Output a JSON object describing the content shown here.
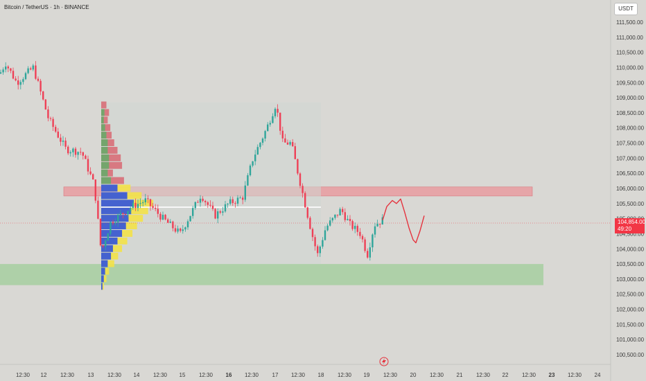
{
  "header": {
    "title": "Bitcoin / TetherUS · 1h · BINANCE",
    "currency_button": "USDT"
  },
  "last_price": {
    "value": "104,854.00",
    "countdown": "49:20",
    "color": "#f23645"
  },
  "colors": {
    "background": "#d9d8d4",
    "up_candle": "#2fa59a",
    "down_candle": "#ee4056",
    "red_zone": "#e79ca0",
    "green_zone": "#a9cfa3",
    "range_box": "#cfd7d2",
    "profile_up": "#3b5bd6",
    "profile_down": "#f3e248",
    "projection": "#e5323d"
  },
  "watermark_icon": "lightning-bolt-icon",
  "chart_data": {
    "type": "candlestick",
    "symbol": "BTCUSDT",
    "interval": "1h",
    "ylim": [
      100000,
      112000
    ],
    "y_ticks": [
      "111,500.00",
      "111,000.00",
      "110,500.00",
      "110,000.00",
      "109,500.00",
      "109,000.00",
      "108,500.00",
      "108,000.00",
      "107,500.00",
      "107,000.00",
      "106,500.00",
      "106,000.00",
      "105,500.00",
      "105,000.00",
      "104,500.00",
      "104,000.00",
      "103,500.00",
      "103,000.00",
      "102,500.00",
      "102,000.00",
      "101,500.00",
      "101,000.00",
      "100,500.00"
    ],
    "x_ticks": [
      "12:30",
      "12",
      "12:30",
      "13",
      "12:30",
      "14",
      "12:30",
      "15",
      "12:30",
      "16",
      "12:30",
      "17",
      "12:30",
      "18",
      "12:30",
      "19",
      "12:30",
      "20",
      "12:30",
      "21",
      "12:30",
      "22",
      "12:30",
      "23",
      "12:30",
      "24"
    ],
    "x_ticks_bold": [
      "16",
      "23"
    ],
    "path_keypoints": [
      {
        "t": 0,
        "p": 109800
      },
      {
        "t": 8,
        "p": 110150
      },
      {
        "t": 24,
        "p": 109500
      },
      {
        "t": 48,
        "p": 110000
      },
      {
        "t": 70,
        "p": 108300
      },
      {
        "t": 95,
        "p": 107300
      },
      {
        "t": 118,
        "p": 107200
      },
      {
        "t": 136,
        "p": 106100
      },
      {
        "t": 146,
        "p": 103900
      },
      {
        "t": 160,
        "p": 104900
      },
      {
        "t": 190,
        "p": 105400
      },
      {
        "t": 210,
        "p": 105600
      },
      {
        "t": 235,
        "p": 105000
      },
      {
        "t": 260,
        "p": 104500
      },
      {
        "t": 290,
        "p": 105800
      },
      {
        "t": 310,
        "p": 105100
      },
      {
        "t": 330,
        "p": 105500
      },
      {
        "t": 350,
        "p": 105700
      },
      {
        "t": 365,
        "p": 107000
      },
      {
        "t": 385,
        "p": 108000
      },
      {
        "t": 398,
        "p": 108800
      },
      {
        "t": 408,
        "p": 107500
      },
      {
        "t": 420,
        "p": 107500
      },
      {
        "t": 435,
        "p": 106000
      },
      {
        "t": 450,
        "p": 104500
      },
      {
        "t": 458,
        "p": 103800
      },
      {
        "t": 470,
        "p": 104700
      },
      {
        "t": 492,
        "p": 105300
      },
      {
        "t": 505,
        "p": 104800
      },
      {
        "t": 520,
        "p": 104500
      },
      {
        "t": 530,
        "p": 103800
      },
      {
        "t": 540,
        "p": 104800
      },
      {
        "t": 552,
        "p": 104950
      }
    ],
    "projection": [
      {
        "t": 552,
        "p": 104950
      },
      {
        "t": 558,
        "p": 105400
      },
      {
        "t": 566,
        "p": 105600
      },
      {
        "t": 572,
        "p": 105500
      },
      {
        "t": 578,
        "p": 105650
      },
      {
        "t": 584,
        "p": 105200
      },
      {
        "t": 590,
        "p": 104700
      },
      {
        "t": 596,
        "p": 104300
      },
      {
        "t": 600,
        "p": 104200
      },
      {
        "t": 606,
        "p": 104600
      },
      {
        "t": 612,
        "p": 105100
      }
    ],
    "zones": [
      {
        "name": "resistance",
        "from": 105750,
        "to": 106050,
        "start_t": 92,
        "end_t": 768
      },
      {
        "name": "support",
        "from": 102800,
        "to": 103500,
        "start_t": 0,
        "end_t": 784
      },
      {
        "name": "range",
        "from": 103500,
        "to": 108850,
        "start_t": 146,
        "end_t": 463
      }
    ],
    "poc_line": {
      "price": 105380,
      "start_t": 146,
      "end_t": 463
    },
    "volume_profile": [
      {
        "price": 108750,
        "up": 0,
        "down": 0.08
      },
      {
        "price": 108500,
        "up": 0.05,
        "down": 0.12
      },
      {
        "price": 108250,
        "up": 0.04,
        "down": 0.1
      },
      {
        "price": 108000,
        "up": 0.06,
        "down": 0.14
      },
      {
        "price": 107750,
        "up": 0.08,
        "down": 0.16
      },
      {
        "price": 107500,
        "up": 0.1,
        "down": 0.2
      },
      {
        "price": 107250,
        "up": 0.1,
        "down": 0.25
      },
      {
        "price": 107000,
        "up": 0.12,
        "down": 0.3
      },
      {
        "price": 106750,
        "up": 0.12,
        "down": 0.32
      },
      {
        "price": 106500,
        "up": 0.1,
        "down": 0.18
      },
      {
        "price": 106250,
        "up": 0.15,
        "down": 0.35
      },
      {
        "price": 106000,
        "up": 0.25,
        "down": 0.45
      },
      {
        "price": 105750,
        "up": 0.4,
        "down": 0.62
      },
      {
        "price": 105500,
        "up": 0.5,
        "down": 0.8
      },
      {
        "price": 105250,
        "up": 0.46,
        "down": 0.72
      },
      {
        "price": 105000,
        "up": 0.42,
        "down": 0.64
      },
      {
        "price": 104750,
        "up": 0.38,
        "down": 0.55
      },
      {
        "price": 104500,
        "up": 0.32,
        "down": 0.48
      },
      {
        "price": 104250,
        "up": 0.25,
        "down": 0.4
      },
      {
        "price": 104000,
        "up": 0.18,
        "down": 0.32
      },
      {
        "price": 103750,
        "up": 0.15,
        "down": 0.26
      },
      {
        "price": 103500,
        "up": 0.1,
        "down": 0.2
      },
      {
        "price": 103250,
        "up": 0.06,
        "down": 0.12
      },
      {
        "price": 103000,
        "up": 0.04,
        "down": 0.08
      },
      {
        "price": 102750,
        "up": 0.02,
        "down": 0.04
      }
    ]
  }
}
